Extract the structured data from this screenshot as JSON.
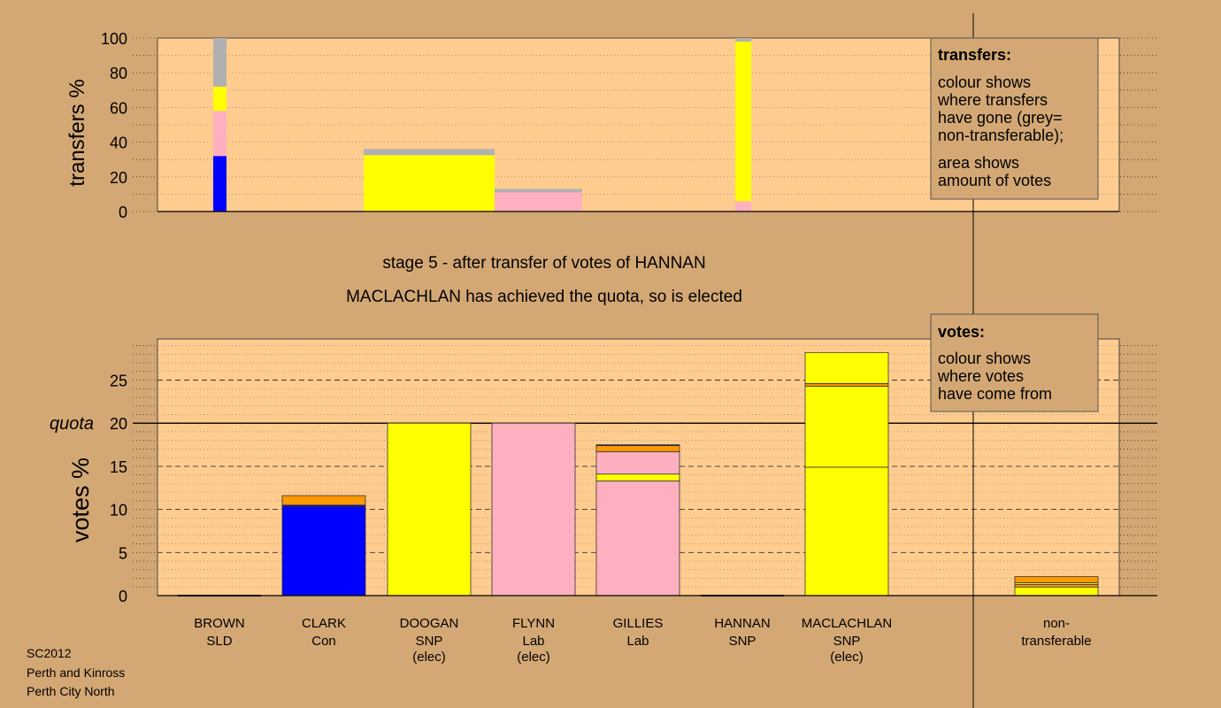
{
  "colors": {
    "background": "#d4a874",
    "plot_bg": "#ffcc8f",
    "SLD": "#0000ff",
    "Con": "#0000ff",
    "SNP": "#ffff00",
    "Lab": "#ffb0c0",
    "other": "#ff9900",
    "nontransferable": "#b0b0b0"
  },
  "captions": {
    "stage": "stage 5 - after transfer of votes of HANNAN",
    "result": "MACLACHLAN has achieved the quota, so is elected"
  },
  "footer": [
    "SC2012",
    "Perth and Kinross",
    "Perth City North"
  ],
  "chart_data": [
    {
      "type": "bar",
      "title": "transfers",
      "ylabel": "transfers %",
      "ylim": [
        0,
        100
      ],
      "yticks": [
        0,
        20,
        40,
        60,
        80,
        100
      ],
      "legend_title": "transfers:",
      "legend_lines": [
        "colour shows",
        "where transfers",
        "have gone (grey=",
        "non-transferable);",
        "area shows",
        "amount of votes"
      ],
      "legend_placement": "top-right",
      "bars": [
        {
          "segments": [
            {
              "party": "Con",
              "value": 32
            },
            {
              "party": "Lab",
              "value": 26
            },
            {
              "party": "SNP",
              "value": 14
            },
            {
              "party": "nontransferable",
              "value": 28
            }
          ]
        },
        {
          "segments": [
            {
              "party": "SNP",
              "value": 1.5
            },
            {
              "party": "SNP",
              "value": 31
            },
            {
              "party": "nontransferable",
              "value": 3.5
            }
          ]
        },
        {
          "segments": [
            {
              "party": "Lab",
              "value": 11
            },
            {
              "party": "nontransferable",
              "value": 2
            }
          ]
        },
        {
          "segments": [
            {
              "party": "Lab",
              "value": 6
            },
            {
              "party": "SNP",
              "value": 92
            },
            {
              "party": "nontransferable",
              "value": 2
            }
          ]
        }
      ]
    },
    {
      "type": "bar",
      "title": "votes",
      "ylabel": "votes %",
      "ylim": [
        0,
        30
      ],
      "yticks": [
        0,
        5,
        10,
        15,
        20,
        25
      ],
      "quota": 20,
      "quota_label": "quota",
      "legend_title": "votes:",
      "legend_lines": [
        "colour shows",
        "where votes",
        "have come from"
      ],
      "legend_placement": "top-right",
      "categories": [
        {
          "name": "BROWN",
          "party": "SLD",
          "status": ""
        },
        {
          "name": "CLARK",
          "party": "Con",
          "status": ""
        },
        {
          "name": "DOOGAN",
          "party": "SNP",
          "status": "(elec)"
        },
        {
          "name": "FLYNN",
          "party": "Lab",
          "status": "(elec)"
        },
        {
          "name": "GILLIES",
          "party": "Lab",
          "status": ""
        },
        {
          "name": "HANNAN",
          "party": "SNP",
          "status": ""
        },
        {
          "name": "MACLACHLAN",
          "party": "SNP",
          "status": "(elec)"
        },
        {
          "name": "non-",
          "party": "transferable",
          "status": ""
        }
      ],
      "bars": [
        {
          "segments": []
        },
        {
          "segments": [
            {
              "party": "Con",
              "value": 10.3
            },
            {
              "party": "SLD",
              "value": 0.2
            },
            {
              "party": "other",
              "value": 1.1
            }
          ]
        },
        {
          "segments": [
            {
              "party": "SNP",
              "value": 20
            }
          ]
        },
        {
          "segments": [
            {
              "party": "Lab",
              "value": 20
            }
          ]
        },
        {
          "segments": [
            {
              "party": "Lab",
              "value": 13.3
            },
            {
              "party": "SNP",
              "value": 0.8
            },
            {
              "party": "Lab",
              "value": 2.6
            },
            {
              "party": "other",
              "value": 0.7
            },
            {
              "party": "SLD",
              "value": 0.1
            }
          ]
        },
        {
          "segments": []
        },
        {
          "segments": [
            {
              "party": "SNP",
              "value": 14.9
            },
            {
              "party": "SNP",
              "value": 9.4
            },
            {
              "party": "other",
              "value": 0.3
            },
            {
              "party": "SNP",
              "value": 3.6
            }
          ]
        },
        {
          "segments": [
            {
              "party": "SNP",
              "value": 1
            },
            {
              "party": "other",
              "value": 0.3
            },
            {
              "party": "SNP",
              "value": 0.2
            },
            {
              "party": "other",
              "value": 0.7
            }
          ]
        }
      ]
    }
  ]
}
